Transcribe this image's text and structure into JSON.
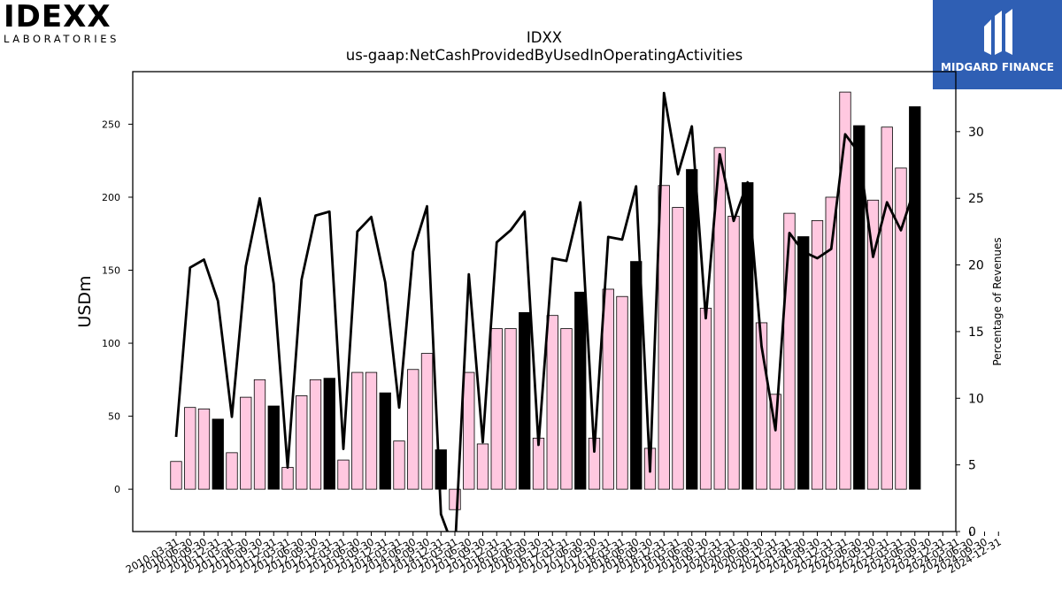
{
  "header": {
    "company_logo": {
      "mark": "IDEXX",
      "tagline": "LABORATORIES"
    },
    "brand_logo": {
      "name": "MIDGARD FINANCE",
      "icon": "midgard-m-icon",
      "background": "#2f5fb4"
    }
  },
  "colors": {
    "bar_default": "#ffc8e0",
    "bar_quarter_end": "#000000",
    "line": "#000000",
    "bar_edge": "#000000"
  },
  "chart_data": {
    "type": "bar",
    "title": "IDXX",
    "subtitle": "us-gaap:NetCashProvidedByUsedInOperatingActivities",
    "ylabel": "USDm",
    "y2label": "Percentage of Revenues",
    "ylim": [
      -29,
      286
    ],
    "y2lim": [
      0,
      34.5
    ],
    "yticks": [
      0,
      50,
      100,
      150,
      200,
      250
    ],
    "y2ticks": [
      0,
      5,
      10,
      15,
      20,
      25,
      30
    ],
    "grid": false,
    "legend": "none",
    "categories": [
      "2010-03-31",
      "2010-06-30",
      "2010-09-30",
      "2010-12-31",
      "2011-03-31",
      "2011-06-30",
      "2011-09-30",
      "2011-12-31",
      "2012-03-31",
      "2012-06-30",
      "2012-09-30",
      "2012-12-31",
      "2013-03-31",
      "2013-06-30",
      "2013-09-30",
      "2013-12-31",
      "2014-03-31",
      "2014-06-30",
      "2014-09-30",
      "2014-12-31",
      "2015-03-31",
      "2015-06-30",
      "2015-09-30",
      "2015-12-31",
      "2016-03-31",
      "2016-06-30",
      "2016-09-30",
      "2016-12-31",
      "2017-03-31",
      "2017-06-30",
      "2017-09-30",
      "2017-12-31",
      "2018-03-31",
      "2018-06-30",
      "2018-09-30",
      "2018-12-31",
      "2019-03-31",
      "2019-06-30",
      "2019-09-30",
      "2019-12-31",
      "2020-03-31",
      "2020-06-30",
      "2020-09-30",
      "2020-12-31",
      "2021-03-31",
      "2021-06-30",
      "2021-09-30",
      "2021-12-31",
      "2022-03-31",
      "2022-06-30",
      "2022-09-30",
      "2022-12-31",
      "2023-03-31",
      "2023-06-30",
      "2023-09-30",
      "2023-12-31",
      "2024-03-31",
      "2024-06-30",
      "2024-09-30",
      "2024-12-31"
    ],
    "tick_labels": [
      "2010-03-31",
      "2010-06-30",
      "2010-09-30",
      "2010-12-31",
      "2011-03-31",
      "2011-06-30",
      "2011-09-30",
      "2011-12-31",
      "2012-03-31",
      "2012-06-30",
      "2012-09-30",
      "2012-12-31",
      "2013-03-31",
      "2013-06-30",
      "2013-09-30",
      "2013-12-31",
      "2014-03-31",
      "2014-06-30",
      "2014-09-30",
      "2014-12-31",
      "2015-03-31",
      "2015-06-30",
      "2015-09-30",
      "2015-12-31",
      "2016-03-31",
      "2016-06-30",
      "2016-09-30",
      "2016-12-31",
      "2017-03-31",
      "2017-06-30",
      "2017-09-30",
      "2017-12-31",
      "2018-03-31",
      "2018-06-30",
      "2018-09-30",
      "2018-12-31",
      "2019-03-31",
      "2019-06-30",
      "2019-09-30",
      "2019-12-31",
      "2020-03-31",
      "2020-06-30",
      "2020-09-30",
      "2020-12-31",
      "2021-03-31",
      "2021-06-30",
      "2021-09-30",
      "2021-12-31",
      "2022-03-31",
      "2022-06-30",
      "2022-09-30",
      "2022-12-31",
      "2023-03-31",
      "2023-06-30",
      "2023-09-30",
      "2023-12-31",
      "2024-03-31",
      "2024-06-30",
      "2024-09-30",
      "2024-12-31"
    ],
    "bar_values": [
      19,
      56,
      55,
      48,
      25,
      63,
      75,
      57,
      15,
      64,
      75,
      76,
      20,
      80,
      80,
      66,
      33,
      82,
      93,
      27,
      -14,
      80,
      31,
      110,
      110,
      121,
      35,
      119,
      110,
      135,
      35,
      137,
      132,
      156,
      28,
      208,
      193,
      219,
      124,
      234,
      187,
      210,
      114,
      65,
      189,
      173,
      184,
      200,
      272,
      249,
      198,
      248,
      220,
      262,
      null,
      null,
      null,
      null,
      null,
      null
    ],
    "bar_highlight": [
      false,
      false,
      false,
      true,
      false,
      false,
      false,
      true,
      false,
      false,
      false,
      true,
      false,
      false,
      false,
      true,
      false,
      false,
      false,
      true,
      false,
      false,
      false,
      false,
      false,
      true,
      false,
      false,
      false,
      true,
      false,
      false,
      false,
      true,
      false,
      false,
      false,
      true,
      false,
      false,
      false,
      true,
      false,
      false,
      false,
      true,
      false,
      false,
      false,
      true,
      false,
      false,
      false,
      true,
      false,
      false,
      false,
      false,
      false,
      false
    ],
    "series": [
      {
        "type": "line",
        "axis": "right",
        "values": [
          7.1,
          19.8,
          20.4,
          17.3,
          8.6,
          19.9,
          25.0,
          18.6,
          4.8,
          18.9,
          23.7,
          24.0,
          6.2,
          22.5,
          23.6,
          18.7,
          9.3,
          21.0,
          24.4,
          1.3,
          -1.5,
          19.3,
          6.7,
          21.7,
          22.6,
          24.0,
          6.5,
          20.5,
          20.3,
          24.7,
          6.0,
          22.1,
          21.9,
          25.9,
          4.5,
          32.9,
          26.8,
          30.4,
          16.0,
          28.3,
          23.3,
          26.2,
          13.9,
          7.6,
          22.4,
          21.0,
          20.5,
          21.2,
          29.8,
          28.4,
          20.6,
          24.7,
          22.6,
          25.8,
          null,
          null,
          null,
          null,
          null,
          null
        ]
      }
    ]
  }
}
